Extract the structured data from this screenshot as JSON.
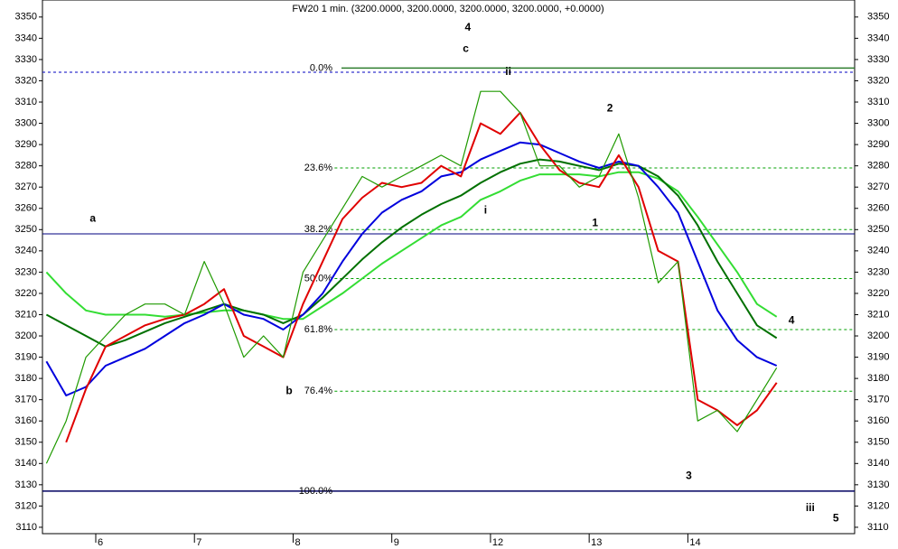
{
  "chart_data": {
    "type": "line",
    "title": "FW20 1 min. (3200.0000, 3200.0000, 3200.0000, 3200.0000, +0.0000)",
    "x": [
      0.5,
      0.7,
      0.9,
      1.1,
      1.3,
      1.5,
      1.7,
      1.9,
      2.1,
      2.3,
      2.5,
      2.7,
      2.9,
      3.1,
      3.3,
      3.5,
      3.7,
      3.9,
      4.1,
      4.3,
      4.5,
      4.7,
      4.9,
      5.1,
      5.3,
      5.5,
      5.7,
      5.9,
      6.1,
      6.3,
      6.5,
      6.7,
      6.9,
      7.1,
      7.3,
      7.5,
      7.7,
      7.9
    ],
    "xlim": [
      0.46,
      8.69
    ],
    "xticks": [
      {
        "value": 1,
        "label": "6"
      },
      {
        "value": 2,
        "label": "7"
      },
      {
        "value": 3,
        "label": "8"
      },
      {
        "value": 4,
        "label": "9"
      },
      {
        "value": 5,
        "label": "12"
      },
      {
        "value": 6,
        "label": "13"
      },
      {
        "value": 7,
        "label": "14"
      }
    ],
    "ylim": [
      3107,
      3358
    ],
    "yticks": [
      3110,
      3120,
      3130,
      3140,
      3150,
      3160,
      3170,
      3180,
      3190,
      3200,
      3210,
      3220,
      3230,
      3240,
      3250,
      3260,
      3270,
      3280,
      3290,
      3300,
      3310,
      3320,
      3330,
      3340,
      3350
    ],
    "series": [
      {
        "name": "price",
        "color": "#1f9a00",
        "width": 1.2,
        "values": [
          3140,
          3160,
          3190,
          3200,
          3210,
          3215,
          3215,
          3210,
          3235,
          3215,
          3190,
          3200,
          3190,
          3230,
          3245,
          3260,
          3275,
          3270,
          3275,
          3280,
          3285,
          3280,
          3315,
          3315,
          3305,
          3280,
          3280,
          3270,
          3275,
          3295,
          3265,
          3225,
          3235,
          3160,
          3165,
          3155,
          3170,
          3185
        ]
      },
      {
        "name": "ma-red",
        "color": "#e00000",
        "width": 2,
        "values": [
          null,
          3150,
          3175,
          3195,
          3200,
          3205,
          3208,
          3210,
          3215,
          3222,
          3200,
          3195,
          3190,
          3215,
          3235,
          3255,
          3265,
          3272,
          3270,
          3272,
          3280,
          3275,
          3300,
          3295,
          3305,
          3290,
          3278,
          3272,
          3270,
          3285,
          3270,
          3240,
          3235,
          3170,
          3165,
          3158,
          3165,
          3178
        ]
      },
      {
        "name": "ma-blue",
        "color": "#0000dd",
        "width": 2,
        "values": [
          3188,
          3172,
          3176,
          3186,
          3190,
          3194,
          3200,
          3206,
          3210,
          3215,
          3210,
          3208,
          3203,
          3210,
          3220,
          3235,
          3248,
          3258,
          3264,
          3268,
          3275,
          3277,
          3283,
          3287,
          3291,
          3290,
          3286,
          3282,
          3279,
          3282,
          3280,
          3270,
          3258,
          3235,
          3212,
          3198,
          3190,
          3186
        ]
      },
      {
        "name": "ma-dark-green",
        "color": "#007000",
        "width": 2,
        "values": [
          3210,
          3205,
          3200,
          3195,
          3198,
          3202,
          3206,
          3209,
          3212,
          3215,
          3212,
          3210,
          3206,
          3210,
          3218,
          3227,
          3236,
          3244,
          3251,
          3257,
          3262,
          3266,
          3272,
          3277,
          3281,
          3283,
          3282,
          3280,
          3278,
          3281,
          3280,
          3275,
          3266,
          3252,
          3235,
          3220,
          3205,
          3199
        ]
      },
      {
        "name": "ma-light-green",
        "color": "#33dd33",
        "width": 2,
        "values": [
          3230,
          3220,
          3212,
          3210,
          3210,
          3210,
          3209,
          3210,
          3211,
          3212,
          3212,
          3210,
          3208,
          3208,
          3214,
          3220,
          3227,
          3234,
          3240,
          3246,
          3252,
          3256,
          3264,
          3268,
          3273,
          3276,
          3276,
          3276,
          3275,
          3277,
          3277,
          3274,
          3268,
          3256,
          3243,
          3230,
          3215,
          3209
        ]
      }
    ],
    "hlines": [
      {
        "value": 3324,
        "color": "#0000c0",
        "dashed": true,
        "x_from": 0.46
      },
      {
        "value": 3248,
        "color": "#000080",
        "dashed": false,
        "x_from": 0.46
      }
    ],
    "fib_levels": [
      {
        "label": "0.0%",
        "value": 3326,
        "color": "#2e7d2e",
        "dashed": false,
        "x_from": 3.49
      },
      {
        "label": "23.6%",
        "value": 3279,
        "color": "#00a000",
        "dashed": true,
        "x_from": 3.42
      },
      {
        "label": "38.2%",
        "value": 3250,
        "color": "#00a000",
        "dashed": true,
        "x_from": 3.42
      },
      {
        "label": "50.0%",
        "value": 3227,
        "color": "#00a000",
        "dashed": true,
        "x_from": 3.42
      },
      {
        "label": "61.8%",
        "value": 3203,
        "color": "#00a000",
        "dashed": true,
        "x_from": 3.42
      },
      {
        "label": "76.4%",
        "value": 3174,
        "color": "#00a000",
        "dashed": true,
        "x_from": 3.42
      },
      {
        "label": "100.0%",
        "value": 3127,
        "color": "#000060",
        "dashed": false,
        "x_from": 0.46
      }
    ],
    "annotations": [
      {
        "text": "a",
        "x": 0.97,
        "y": 3255,
        "color": "#000090"
      },
      {
        "text": "b",
        "x": 2.96,
        "y": 3174,
        "color": "#000090"
      },
      {
        "text": "c",
        "x": 4.75,
        "y": 3335,
        "color": "#000090"
      },
      {
        "text": "4",
        "x": 4.77,
        "y": 3345,
        "color": "#e000e0"
      },
      {
        "text": "ii",
        "x": 5.18,
        "y": 3324,
        "color": "#000090"
      },
      {
        "text": "i",
        "x": 4.95,
        "y": 3259,
        "color": "#000090"
      },
      {
        "text": "1",
        "x": 6.06,
        "y": 3253,
        "color": "#d00000"
      },
      {
        "text": "2",
        "x": 6.21,
        "y": 3307,
        "color": "#d00000"
      },
      {
        "text": "3",
        "x": 7.01,
        "y": 3134,
        "color": "#d00000"
      },
      {
        "text": "4",
        "x": 8.05,
        "y": 3207,
        "color": "#d00000"
      },
      {
        "text": "iii",
        "x": 8.24,
        "y": 3119,
        "color": "#000090"
      },
      {
        "text": "5",
        "x": 8.5,
        "y": 3114,
        "color": "#e000e0"
      }
    ]
  }
}
